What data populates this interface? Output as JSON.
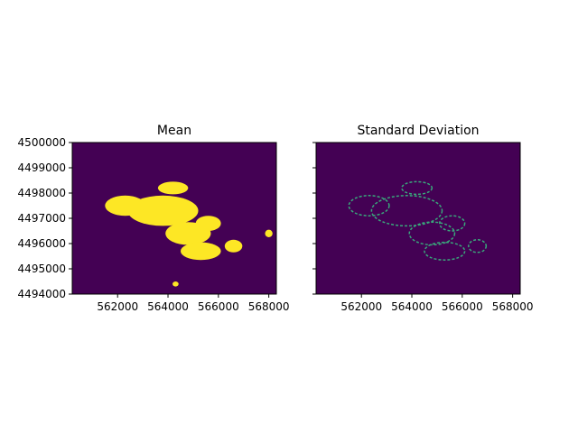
{
  "chart_data": [
    {
      "type": "heatmap",
      "title": "Mean",
      "colormap": "viridis",
      "xlim": [
        560200,
        568300
      ],
      "ylim": [
        4494000,
        4500000
      ],
      "x_ticks": [
        562000,
        564000,
        566000,
        568000
      ],
      "y_ticks": [
        4494000,
        4495000,
        4496000,
        4497000,
        4498000,
        4499000,
        4500000
      ],
      "x_tick_labels": [
        "562000",
        "564000",
        "566000",
        "568000"
      ],
      "y_tick_labels": [
        "4494000",
        "4495000",
        "4496000",
        "4497000",
        "4498000",
        "4499000",
        "4500000"
      ],
      "background_value": 0,
      "features": [
        {
          "x": 563800,
          "y": 4497300,
          "rx": 1400,
          "ry": 600,
          "value": 1.0
        },
        {
          "x": 562300,
          "y": 4497500,
          "rx": 800,
          "ry": 400,
          "value": 1.0
        },
        {
          "x": 564800,
          "y": 4496400,
          "rx": 900,
          "ry": 450,
          "value": 1.0
        },
        {
          "x": 565300,
          "y": 4495700,
          "rx": 800,
          "ry": 350,
          "value": 1.0
        },
        {
          "x": 565600,
          "y": 4496800,
          "rx": 500,
          "ry": 300,
          "value": 1.0
        },
        {
          "x": 564200,
          "y": 4498200,
          "rx": 600,
          "ry": 250,
          "value": 1.0
        },
        {
          "x": 566600,
          "y": 4495900,
          "rx": 350,
          "ry": 250,
          "value": 1.0
        },
        {
          "x": 568000,
          "y": 4496400,
          "rx": 150,
          "ry": 150,
          "value": 1.0
        },
        {
          "x": 564300,
          "y": 4494400,
          "rx": 120,
          "ry": 100,
          "value": 1.0
        }
      ]
    },
    {
      "type": "heatmap",
      "title": "Standard Deviation",
      "colormap": "viridis",
      "xlim": [
        560200,
        568300
      ],
      "ylim": [
        4494000,
        4500000
      ],
      "x_ticks": [
        562000,
        564000,
        566000,
        568000
      ],
      "y_ticks": [
        4494000,
        4495000,
        4496000,
        4497000,
        4498000,
        4499000,
        4500000
      ],
      "x_tick_labels": [
        "562000",
        "564000",
        "566000",
        "568000"
      ],
      "y_tick_labels": [],
      "background_value": 0,
      "features": [
        {
          "x": 563800,
          "y": 4497300,
          "rx": 1400,
          "ry": 600,
          "value": 0.6
        },
        {
          "x": 562300,
          "y": 4497500,
          "rx": 800,
          "ry": 400,
          "value": 0.6
        },
        {
          "x": 564800,
          "y": 4496400,
          "rx": 900,
          "ry": 450,
          "value": 0.6
        },
        {
          "x": 565300,
          "y": 4495700,
          "rx": 800,
          "ry": 350,
          "value": 0.6
        },
        {
          "x": 565600,
          "y": 4496800,
          "rx": 500,
          "ry": 300,
          "value": 0.6
        },
        {
          "x": 564200,
          "y": 4498200,
          "rx": 600,
          "ry": 250,
          "value": 0.6
        },
        {
          "x": 566600,
          "y": 4495900,
          "rx": 350,
          "ry": 250,
          "value": 0.6
        }
      ]
    }
  ]
}
